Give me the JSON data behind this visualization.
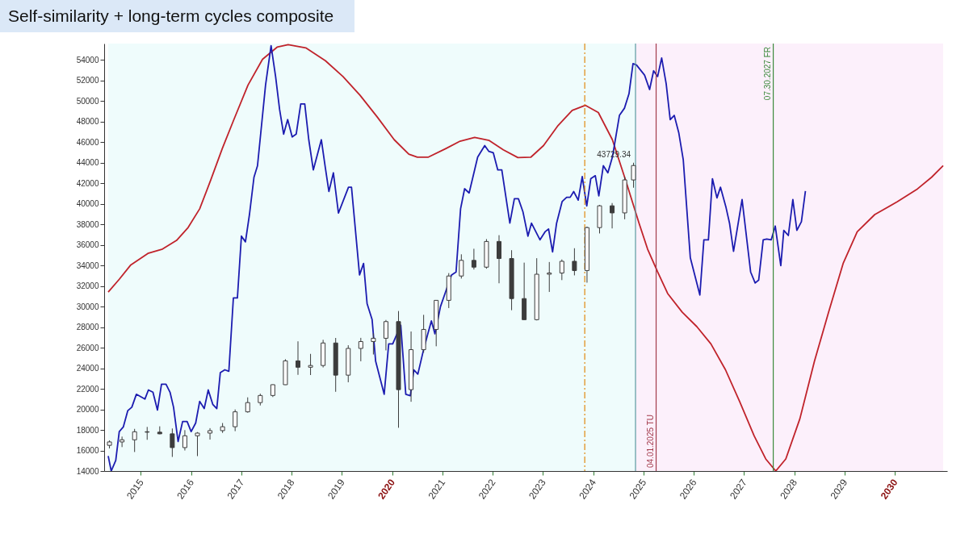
{
  "chart_data": {
    "type": "candlestick",
    "title": "Self-similarity + long-term cycles composite",
    "color": "#3c3c3c",
    "x": [
      2014.375,
      2014.625,
      2014.875,
      2015.125,
      2015.375,
      2015.625,
      2015.875,
      2016.125,
      2016.375,
      2016.625,
      2016.875,
      2017.125,
      2017.375,
      2017.625,
      2017.875,
      2018.125,
      2018.375,
      2018.625,
      2018.875,
      2019.125,
      2019.375,
      2019.625,
      2019.875,
      2020.125,
      2020.375,
      2020.625,
      2020.875,
      2021.125,
      2021.375,
      2021.625,
      2021.875,
      2022.125,
      2022.375,
      2022.625,
      2022.875,
      2023.125,
      2023.375,
      2023.625,
      2023.875,
      2024.125,
      2024.375,
      2024.625,
      2024.8
    ],
    "ohlc": [
      [
        16500,
        16980,
        16200,
        16830
      ],
      [
        16830,
        17350,
        16330,
        17040
      ],
      [
        17040,
        18100,
        15850,
        17820
      ],
      [
        17820,
        18290,
        17040,
        17780
      ],
      [
        17780,
        18350,
        17580,
        17620
      ],
      [
        17620,
        18140,
        15370,
        16280
      ],
      [
        16280,
        17980,
        16000,
        17430
      ],
      [
        17430,
        17790,
        15450,
        17690
      ],
      [
        17690,
        18170,
        17060,
        17930
      ],
      [
        17930,
        18670,
        17710,
        18310
      ],
      [
        18310,
        19990,
        17880,
        19760
      ],
      [
        19760,
        21170,
        19680,
        20660
      ],
      [
        20660,
        21530,
        20380,
        21350
      ],
      [
        21350,
        22420,
        21200,
        22400
      ],
      [
        22400,
        24880,
        22380,
        24720
      ],
      [
        24720,
        26620,
        23360,
        24100
      ],
      [
        24100,
        25400,
        23340,
        24270
      ],
      [
        24270,
        26770,
        24080,
        26460
      ],
      [
        26460,
        26950,
        21710,
        23330
      ],
      [
        23330,
        26240,
        22640,
        25930
      ],
      [
        25930,
        26960,
        24680,
        26600
      ],
      [
        26600,
        27400,
        25340,
        26920
      ],
      [
        26920,
        28700,
        25740,
        28540
      ],
      [
        28540,
        29570,
        18210,
        21920
      ],
      [
        21920,
        27580,
        20740,
        25810
      ],
      [
        25810,
        29200,
        25520,
        27780
      ],
      [
        27780,
        30640,
        26140,
        30610
      ],
      [
        30610,
        33260,
        29860,
        32980
      ],
      [
        32980,
        35090,
        32730,
        34500
      ],
      [
        34500,
        35630,
        33610,
        33840
      ],
      [
        33840,
        36570,
        33690,
        36340
      ],
      [
        36340,
        36950,
        32270,
        34680
      ],
      [
        34680,
        35490,
        29650,
        30780
      ],
      [
        30780,
        34280,
        28720,
        28730
      ],
      [
        28730,
        34710,
        28660,
        33150
      ],
      [
        33150,
        34340,
        31430,
        33270
      ],
      [
        33270,
        34590,
        32580,
        34410
      ],
      [
        34410,
        35680,
        33040,
        33510
      ],
      [
        33510,
        37790,
        32330,
        37690
      ],
      [
        37690,
        39890,
        37120,
        39810
      ],
      [
        39810,
        40080,
        37610,
        39120
      ],
      [
        39120,
        42630,
        38500,
        42330
      ],
      [
        42330,
        44000,
        41570,
        43729.34
      ]
    ],
    "series": [
      {
        "type": "line",
        "color": "#c0232b",
        "x": [
          2014.35,
          2014.57,
          2014.8,
          2015.14,
          2015.43,
          2015.71,
          2015.94,
          2016.17,
          2016.39,
          2016.62,
          2016.85,
          2017.13,
          2017.42,
          2017.71,
          2017.93,
          2018.28,
          2018.67,
          2019.02,
          2019.36,
          2019.7,
          2020.04,
          2020.33,
          2020.5,
          2020.72,
          2021.07,
          2021.35,
          2021.64,
          2021.93,
          2022.21,
          2022.5,
          2022.76,
          2023.01,
          2023.3,
          2023.58,
          2023.84,
          2024.1,
          2024.38,
          2024.66,
          2024.91,
          2025.08,
          2025.28,
          2025.48,
          2025.77,
          2026.06,
          2026.34,
          2026.63,
          2026.91,
          2027.2,
          2027.43,
          2027.63,
          2027.83,
          2028.11,
          2028.4,
          2028.68,
          2028.97,
          2029.25,
          2029.6,
          2030.05,
          2030.45,
          2030.73,
          2030.96
        ],
        "values": [
          31410,
          32660,
          34060,
          35180,
          35600,
          36440,
          37700,
          39520,
          42320,
          45390,
          48200,
          51550,
          54070,
          55250,
          55500,
          55180,
          53930,
          52390,
          50570,
          48470,
          46240,
          44830,
          44550,
          44550,
          45390,
          46100,
          46460,
          46170,
          45260,
          44500,
          44550,
          45670,
          47630,
          49090,
          49590,
          48890,
          46240,
          42040,
          38120,
          35600,
          33370,
          31270,
          29450,
          28050,
          26370,
          23850,
          20780,
          17420,
          15180,
          14000,
          15180,
          19090,
          24690,
          29450,
          34200,
          37280,
          38960,
          40210,
          41460,
          42590,
          43710
        ]
      },
      {
        "type": "line",
        "color": "#1c1cb0",
        "x": [
          2014.35,
          2014.41,
          2014.5,
          2014.57,
          2014.65,
          2014.74,
          2014.82,
          2014.91,
          2015.08,
          2015.15,
          2015.24,
          2015.33,
          2015.41,
          2015.5,
          2015.58,
          2015.65,
          2015.74,
          2015.83,
          2015.92,
          2016.0,
          2016.09,
          2016.17,
          2016.26,
          2016.34,
          2016.43,
          2016.51,
          2016.58,
          2016.67,
          2016.75,
          2016.84,
          2016.92,
          2017.0,
          2017.08,
          2017.16,
          2017.25,
          2017.32,
          2017.48,
          2017.59,
          2017.68,
          2017.76,
          2017.84,
          2017.92,
          2018.01,
          2018.09,
          2018.18,
          2018.26,
          2018.34,
          2018.43,
          2018.59,
          2018.67,
          2018.74,
          2018.83,
          2018.93,
          2019.13,
          2019.19,
          2019.35,
          2019.43,
          2019.5,
          2019.6,
          2019.67,
          2019.84,
          2019.93,
          2020.01,
          2020.17,
          2020.27,
          2020.36,
          2020.43,
          2020.51,
          2020.61,
          2020.7,
          2020.78,
          2020.85,
          2020.96,
          2021.04,
          2021.18,
          2021.27,
          2021.36,
          2021.44,
          2021.53,
          2021.7,
          2021.84,
          2021.92,
          2022.01,
          2022.1,
          2022.18,
          2022.34,
          2022.43,
          2022.51,
          2022.6,
          2022.7,
          2022.77,
          2022.94,
          2023.04,
          2023.11,
          2023.19,
          2023.27,
          2023.38,
          2023.47,
          2023.54,
          2023.61,
          2023.7,
          2023.78,
          2023.87,
          2023.95,
          2024.04,
          2024.11,
          2024.2,
          2024.29,
          2024.38,
          2024.52,
          2024.62,
          2024.71,
          2024.79,
          2024.86,
          2025.02,
          2025.12,
          2025.2,
          2025.28,
          2025.36,
          2025.45,
          2025.53,
          2025.61,
          2025.7,
          2025.79,
          2025.93,
          2026.12,
          2026.2,
          2026.29,
          2026.37,
          2026.46,
          2026.53,
          2026.64,
          2026.71,
          2026.79,
          2026.96,
          2027.13,
          2027.22,
          2027.29,
          2027.38,
          2027.45,
          2027.54,
          2027.62,
          2027.73,
          2027.79,
          2027.88,
          2027.97,
          2028.05,
          2028.14,
          2028.22
        ],
        "values": [
          15460,
          14000,
          15030,
          17840,
          18280,
          19880,
          20210,
          21470,
          21000,
          21890,
          21670,
          19930,
          22450,
          22450,
          21670,
          20210,
          16870,
          18820,
          18820,
          17840,
          18670,
          20780,
          20080,
          21890,
          20490,
          20080,
          23570,
          23850,
          23710,
          30840,
          30840,
          36860,
          36300,
          38960,
          42590,
          43710,
          51550,
          55400,
          52390,
          49170,
          46790,
          48200,
          46510,
          46790,
          49730,
          49730,
          46240,
          43300,
          46240,
          43500,
          41200,
          43020,
          39100,
          41620,
          41620,
          33080,
          34200,
          30290,
          28740,
          24690,
          21470,
          26370,
          26370,
          28190,
          21470,
          21330,
          23840,
          23430,
          25530,
          27210,
          28610,
          27350,
          30000,
          31130,
          33080,
          33370,
          39520,
          41470,
          41060,
          44550,
          45670,
          45120,
          44980,
          43300,
          43300,
          38120,
          40500,
          40500,
          39240,
          36860,
          38120,
          36500,
          37280,
          37560,
          35320,
          38120,
          40220,
          40640,
          40640,
          41200,
          40360,
          42650,
          39800,
          42450,
          42740,
          40780,
          43710,
          43020,
          44550,
          48610,
          49310,
          50710,
          53650,
          53510,
          52530,
          51130,
          52950,
          52390,
          54200,
          51690,
          48200,
          48610,
          46930,
          44280,
          34760,
          31130,
          36500,
          36500,
          42450,
          40580,
          41620,
          39660,
          38120,
          35380,
          40420,
          33370,
          32300,
          32580,
          36500,
          36580,
          36500,
          37840,
          33980,
          37420,
          36920,
          40420,
          37420,
          38260,
          41250
        ]
      }
    ],
    "xlim": [
      2014.35,
      2030.96
    ],
    "xticks": [
      2015,
      2016,
      2017,
      2018,
      2019,
      2020,
      2021,
      2022,
      2023,
      2024,
      2025,
      2026,
      2027,
      2028,
      2029,
      2030
    ],
    "ylim": [
      14000,
      55600
    ],
    "yticks": [
      14000,
      16000,
      18000,
      20000,
      22000,
      24000,
      26000,
      28000,
      30000,
      32000,
      34000,
      36000,
      38000,
      40000,
      42000,
      44000,
      46000,
      48000,
      50000,
      52000,
      54000
    ],
    "bands": [
      {
        "axis": "x",
        "from": 2014.35,
        "to": 2024.84,
        "color": "#effcfc"
      },
      {
        "axis": "x",
        "from": 2024.84,
        "to": 2030.96,
        "color": "#fcf0fb"
      }
    ],
    "ref_lines": [
      {
        "axis": "x",
        "value": 2023.83,
        "color": "#e08a10",
        "line_style": "dashed"
      },
      {
        "axis": "x",
        "value": 2024.84,
        "color": "#5a9aa0"
      },
      {
        "axis": "x",
        "value": 2025.25,
        "label": "04.01.2025 TU",
        "color": "#a33b4c"
      },
      {
        "axis": "x",
        "value": 2027.58,
        "label": "07.30.2027 FR",
        "color": "#3d8a3d"
      }
    ],
    "annotations": [
      {
        "text": "43729.34",
        "x": 2024.84,
        "y": 43729.34
      }
    ],
    "grid": false
  }
}
